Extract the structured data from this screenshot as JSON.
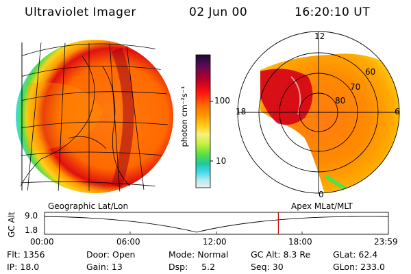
{
  "header": {
    "instrument": "Ultraviolet Imager",
    "date": "02 Jun 00",
    "time": "16:20:10 UT"
  },
  "colorbar": {
    "unit_label": "photon cm⁻²s⁻¹",
    "ticks": [
      "100",
      "10"
    ],
    "colors_top_to_bottom": [
      "#1a0a2e",
      "#5a0a5a",
      "#b0002a",
      "#ff1010",
      "#ff6a00",
      "#ff9a00",
      "#ffd21a",
      "#f8f080",
      "#c8f040",
      "#58e040",
      "#20c8a0",
      "#40d8e8",
      "#b0e8f0",
      "#f0f0f0"
    ]
  },
  "polar_plot": {
    "mlt_labels": [
      "12",
      "18",
      "6",
      "0"
    ],
    "mlat_labels": [
      "60",
      "70",
      "80"
    ]
  },
  "timeline": {
    "y_axis_label": "GC Alt",
    "y_ticks": [
      "9.0",
      "1.8"
    ],
    "left_caption": "Geographic Lat/Lon",
    "right_caption": "Apex MLat/MLT",
    "x_ticks": [
      "00:00",
      "06:00",
      "12:00",
      "18:00",
      "23:59"
    ],
    "current_time_fraction": 0.68,
    "marker_color": "#cc0000"
  },
  "footer": {
    "flt": "Flt: 1356",
    "ip": "IP: 18.0",
    "door": "Door: Open",
    "gain": "Gain: 13",
    "mode": "Mode: Normal",
    "dsp": "Dsp:     5.2",
    "gc_alt": "GC Alt: 8.3 Re",
    "seq": "Seq: 30",
    "glat": "GLat: 62.4",
    "glon": "GLon: 233.0"
  }
}
